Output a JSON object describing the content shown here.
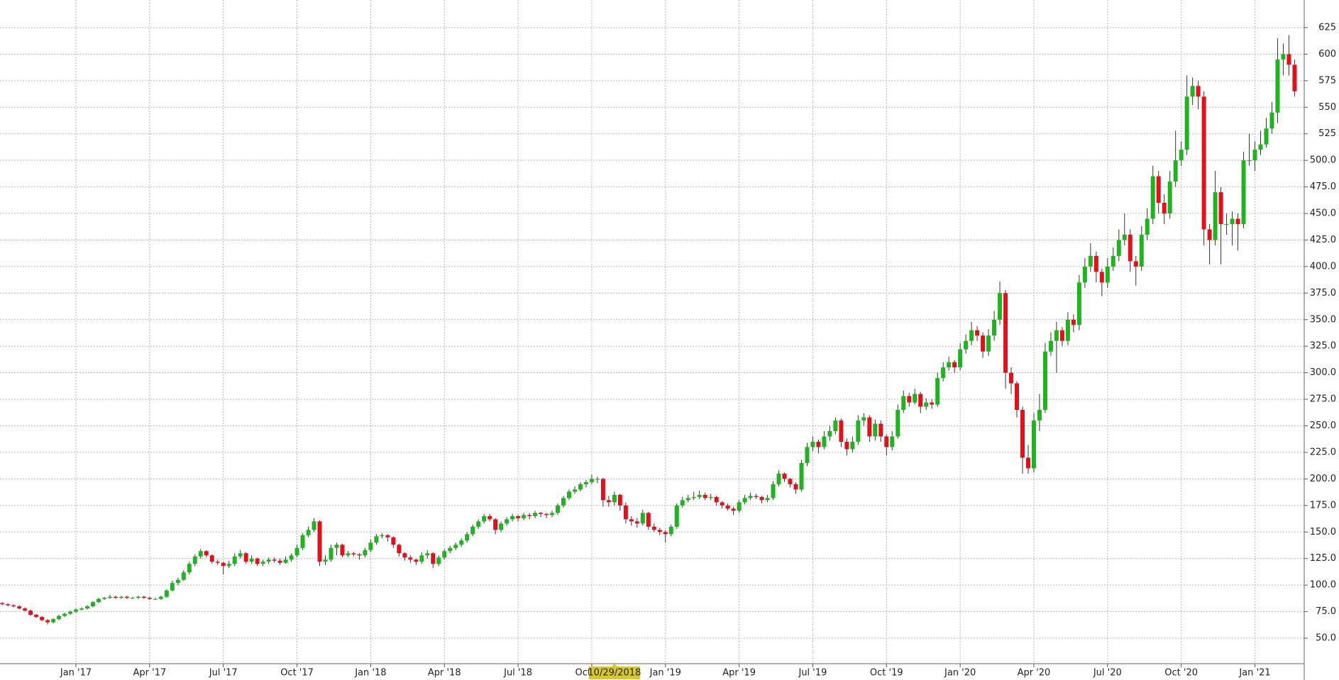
{
  "chart_data": {
    "type": "candlestick",
    "up_color": "#1fb31f",
    "down_color": "#e3101b",
    "wick_color": "#333333",
    "grid": true,
    "cursor": {
      "value": 108,
      "label": "10/29/2018"
    },
    "xlim": [
      -0.4,
      229.7
    ],
    "xticks": [
      {
        "value": 13,
        "label": "Jan '17"
      },
      {
        "value": 26,
        "label": "Apr '17"
      },
      {
        "value": 39,
        "label": "Jul '17"
      },
      {
        "value": 52,
        "label": "Oct '17"
      },
      {
        "value": 65,
        "label": "Jan '18"
      },
      {
        "value": 78,
        "label": "Apr '18"
      },
      {
        "value": 91,
        "label": "Jul '18"
      },
      {
        "value": 104,
        "label": "Oct '18"
      },
      {
        "value": 117,
        "label": "Jan '19"
      },
      {
        "value": 130,
        "label": "Apr '19"
      },
      {
        "value": 143,
        "label": "Jul '19"
      },
      {
        "value": 156,
        "label": "Oct '19"
      },
      {
        "value": 169,
        "label": "Jan '20"
      },
      {
        "value": 182,
        "label": "Apr '20"
      },
      {
        "value": 195,
        "label": "Jul '20"
      },
      {
        "value": 208,
        "label": "Oct '20"
      },
      {
        "value": 221,
        "label": "Jan '21"
      }
    ],
    "ylim": [
      26,
      651
    ],
    "yticks": [
      {
        "value": 50,
        "label": "50.0"
      },
      {
        "value": 75,
        "label": "75.0"
      },
      {
        "value": 100,
        "label": "100.0"
      },
      {
        "value": 125,
        "label": "125.0"
      },
      {
        "value": 150,
        "label": "150.0"
      },
      {
        "value": 175,
        "label": "175.0"
      },
      {
        "value": 200,
        "label": "200.0"
      },
      {
        "value": 225,
        "label": "225.0"
      },
      {
        "value": 250,
        "label": "250.0"
      },
      {
        "value": 275,
        "label": "275.0"
      },
      {
        "value": 300,
        "label": "300.0"
      },
      {
        "value": 325,
        "label": "325.0"
      },
      {
        "value": 350,
        "label": "350.0"
      },
      {
        "value": 375,
        "label": "375.0"
      },
      {
        "value": 400,
        "label": "400.0"
      },
      {
        "value": 425,
        "label": "425.0"
      },
      {
        "value": 450,
        "label": "450.0"
      },
      {
        "value": 475,
        "label": "475.0"
      },
      {
        "value": 500,
        "label": "500.0"
      },
      525,
      550,
      575,
      600,
      625
    ],
    "candles": [
      [
        83,
        84,
        81,
        82
      ],
      [
        82,
        83,
        80,
        81
      ],
      [
        81,
        82,
        79,
        80
      ],
      [
        80,
        81,
        77,
        78
      ],
      [
        78,
        79,
        75,
        76
      ],
      [
        76,
        77,
        71,
        72
      ],
      [
        72,
        73,
        69,
        70
      ],
      [
        70,
        71,
        66,
        67
      ],
      [
        67,
        68,
        63,
        65
      ],
      [
        65,
        69,
        64,
        68
      ],
      [
        68,
        72,
        67,
        71
      ],
      [
        71,
        74,
        70,
        73
      ],
      [
        73,
        76,
        72,
        75
      ],
      [
        75,
        78,
        74,
        77
      ],
      [
        77,
        79,
        76,
        78
      ],
      [
        78,
        81,
        77,
        80
      ],
      [
        80,
        85,
        79,
        84
      ],
      [
        84,
        88,
        83,
        87
      ],
      [
        87,
        89,
        86,
        88
      ],
      [
        88,
        91,
        87,
        89
      ],
      [
        89,
        90,
        87,
        88
      ],
      [
        88,
        90,
        87,
        89
      ],
      [
        89,
        90,
        87,
        88
      ],
      [
        88,
        89,
        87,
        88
      ],
      [
        88,
        90,
        87,
        89
      ],
      [
        89,
        90,
        87,
        88
      ],
      [
        88,
        89,
        86,
        87
      ],
      [
        87,
        88,
        86,
        87
      ],
      [
        87,
        90,
        86,
        89
      ],
      [
        89,
        96,
        88,
        95
      ],
      [
        95,
        104,
        94,
        102
      ],
      [
        102,
        107,
        100,
        105
      ],
      [
        105,
        114,
        104,
        112
      ],
      [
        112,
        122,
        110,
        120
      ],
      [
        120,
        129,
        118,
        127
      ],
      [
        127,
        134,
        125,
        132
      ],
      [
        132,
        133,
        126,
        128
      ],
      [
        128,
        129,
        120,
        122
      ],
      [
        122,
        124,
        119,
        121
      ],
      [
        121,
        122,
        110,
        118
      ],
      [
        118,
        123,
        116,
        120
      ],
      [
        120,
        130,
        118,
        127
      ],
      [
        127,
        133,
        125,
        130
      ],
      [
        130,
        131,
        120,
        122
      ],
      [
        122,
        128,
        120,
        125
      ],
      [
        125,
        126,
        118,
        120
      ],
      [
        120,
        124,
        118,
        122
      ],
      [
        122,
        126,
        120,
        124
      ],
      [
        124,
        126,
        121,
        123
      ],
      [
        123,
        125,
        119,
        121
      ],
      [
        121,
        127,
        120,
        124
      ],
      [
        124,
        130,
        122,
        128
      ],
      [
        128,
        138,
        126,
        135
      ],
      [
        135,
        149,
        133,
        147
      ],
      [
        147,
        155,
        145,
        152
      ],
      [
        152,
        163,
        150,
        160
      ],
      [
        160,
        161,
        118,
        122
      ],
      [
        122,
        128,
        119,
        124
      ],
      [
        124,
        138,
        122,
        135
      ],
      [
        135,
        140,
        128,
        138
      ],
      [
        138,
        139,
        126,
        128
      ],
      [
        128,
        132,
        126,
        130
      ],
      [
        130,
        131,
        127,
        129
      ],
      [
        129,
        130,
        124,
        128
      ],
      [
        128,
        135,
        126,
        133
      ],
      [
        133,
        143,
        131,
        140
      ],
      [
        140,
        148,
        138,
        146
      ],
      [
        146,
        149,
        144,
        147
      ],
      [
        147,
        148,
        141,
        145
      ],
      [
        145,
        146,
        135,
        138
      ],
      [
        138,
        139,
        127,
        130
      ],
      [
        130,
        131,
        123,
        126
      ],
      [
        126,
        128,
        121,
        124
      ],
      [
        124,
        125,
        119,
        122
      ],
      [
        122,
        131,
        120,
        128
      ],
      [
        128,
        133,
        125,
        130
      ],
      [
        130,
        131,
        116,
        120
      ],
      [
        120,
        128,
        118,
        126
      ],
      [
        126,
        134,
        124,
        132
      ],
      [
        132,
        137,
        130,
        135
      ],
      [
        135,
        140,
        133,
        138
      ],
      [
        138,
        144,
        136,
        142
      ],
      [
        142,
        150,
        140,
        148
      ],
      [
        148,
        157,
        146,
        155
      ],
      [
        155,
        162,
        153,
        160
      ],
      [
        160,
        167,
        158,
        165
      ],
      [
        165,
        167,
        160,
        162
      ],
      [
        162,
        163,
        148,
        152
      ],
      [
        152,
        160,
        150,
        158
      ],
      [
        158,
        164,
        156,
        162
      ],
      [
        162,
        167,
        160,
        165
      ],
      [
        165,
        166,
        160,
        163
      ],
      [
        163,
        168,
        161,
        166
      ],
      [
        166,
        168,
        162,
        165
      ],
      [
        165,
        170,
        163,
        168
      ],
      [
        168,
        169,
        164,
        167
      ],
      [
        167,
        168,
        163,
        166
      ],
      [
        166,
        170,
        164,
        168
      ],
      [
        168,
        177,
        166,
        175
      ],
      [
        175,
        184,
        173,
        182
      ],
      [
        182,
        190,
        180,
        188
      ],
      [
        188,
        193,
        186,
        190
      ],
      [
        190,
        197,
        188,
        195
      ],
      [
        195,
        199,
        192,
        197
      ],
      [
        197,
        204,
        195,
        200
      ],
      [
        200,
        202,
        196,
        200
      ],
      [
        200,
        201,
        174,
        180
      ],
      [
        180,
        184,
        174,
        178
      ],
      [
        178,
        188,
        175,
        185
      ],
      [
        185,
        186,
        170,
        175
      ],
      [
        175,
        178,
        158,
        162
      ],
      [
        162,
        165,
        156,
        160
      ],
      [
        160,
        163,
        154,
        158
      ],
      [
        158,
        171,
        156,
        168
      ],
      [
        168,
        169,
        152,
        155
      ],
      [
        155,
        158,
        150,
        152
      ],
      [
        152,
        154,
        147,
        150
      ],
      [
        150,
        152,
        140,
        148
      ],
      [
        148,
        157,
        146,
        155
      ],
      [
        155,
        177,
        153,
        175
      ],
      [
        175,
        183,
        173,
        180
      ],
      [
        180,
        185,
        178,
        182
      ],
      [
        182,
        188,
        180,
        183
      ],
      [
        183,
        189,
        181,
        185
      ],
      [
        185,
        187,
        180,
        182
      ],
      [
        182,
        186,
        180,
        183
      ],
      [
        183,
        184,
        175,
        178
      ],
      [
        178,
        179,
        172,
        175
      ],
      [
        175,
        177,
        170,
        172
      ],
      [
        172,
        174,
        166,
        170
      ],
      [
        170,
        180,
        168,
        178
      ],
      [
        178,
        185,
        176,
        182
      ],
      [
        182,
        187,
        180,
        184
      ],
      [
        184,
        186,
        181,
        183
      ],
      [
        183,
        184,
        177,
        180
      ],
      [
        180,
        185,
        178,
        182
      ],
      [
        182,
        198,
        180,
        195
      ],
      [
        195,
        208,
        193,
        205
      ],
      [
        205,
        206,
        197,
        200
      ],
      [
        200,
        201,
        192,
        195
      ],
      [
        195,
        197,
        186,
        190
      ],
      [
        190,
        218,
        188,
        215
      ],
      [
        215,
        234,
        212,
        230
      ],
      [
        230,
        240,
        226,
        235
      ],
      [
        235,
        237,
        224,
        230
      ],
      [
        230,
        245,
        228,
        240
      ],
      [
        240,
        250,
        236,
        245
      ],
      [
        245,
        258,
        242,
        255
      ],
      [
        255,
        257,
        230,
        235
      ],
      [
        235,
        238,
        222,
        228
      ],
      [
        228,
        240,
        225,
        235
      ],
      [
        235,
        260,
        232,
        255
      ],
      [
        255,
        262,
        250,
        258
      ],
      [
        258,
        260,
        235,
        240
      ],
      [
        240,
        256,
        236,
        252
      ],
      [
        252,
        255,
        235,
        240
      ],
      [
        240,
        242,
        222,
        230
      ],
      [
        230,
        245,
        227,
        240
      ],
      [
        240,
        270,
        238,
        265
      ],
      [
        265,
        283,
        262,
        278
      ],
      [
        278,
        281,
        268,
        272
      ],
      [
        272,
        285,
        270,
        280
      ],
      [
        280,
        282,
        262,
        268
      ],
      [
        268,
        276,
        265,
        272
      ],
      [
        272,
        275,
        266,
        270
      ],
      [
        270,
        300,
        268,
        295
      ],
      [
        295,
        310,
        292,
        305
      ],
      [
        305,
        315,
        302,
        310
      ],
      [
        310,
        312,
        300,
        305
      ],
      [
        305,
        328,
        302,
        322
      ],
      [
        322,
        336,
        318,
        330
      ],
      [
        330,
        348,
        326,
        340
      ],
      [
        340,
        344,
        330,
        335
      ],
      [
        335,
        338,
        314,
        320
      ],
      [
        320,
        341,
        316,
        335
      ],
      [
        335,
        358,
        330,
        350
      ],
      [
        350,
        386,
        345,
        375
      ],
      [
        375,
        378,
        285,
        300
      ],
      [
        300,
        305,
        280,
        290
      ],
      [
        290,
        292,
        258,
        265
      ],
      [
        265,
        268,
        205,
        220
      ],
      [
        220,
        232,
        205,
        210
      ],
      [
        210,
        262,
        206,
        255
      ],
      [
        255,
        280,
        245,
        265
      ],
      [
        265,
        328,
        262,
        320
      ],
      [
        320,
        338,
        316,
        330
      ],
      [
        330,
        348,
        300,
        340
      ],
      [
        340,
        343,
        325,
        330
      ],
      [
        330,
        357,
        326,
        350
      ],
      [
        350,
        355,
        338,
        345
      ],
      [
        345,
        392,
        340,
        385
      ],
      [
        385,
        408,
        380,
        400
      ],
      [
        400,
        422,
        395,
        410
      ],
      [
        410,
        414,
        385,
        395
      ],
      [
        395,
        398,
        372,
        385
      ],
      [
        385,
        408,
        380,
        400
      ],
      [
        400,
        418,
        396,
        410
      ],
      [
        410,
        435,
        405,
        425
      ],
      [
        425,
        450,
        420,
        430
      ],
      [
        430,
        435,
        395,
        405
      ],
      [
        405,
        410,
        382,
        400
      ],
      [
        400,
        438,
        396,
        430
      ],
      [
        430,
        455,
        425,
        445
      ],
      [
        445,
        495,
        440,
        485
      ],
      [
        485,
        490,
        450,
        460
      ],
      [
        460,
        468,
        440,
        450
      ],
      [
        450,
        490,
        445,
        480
      ],
      [
        480,
        528,
        475,
        500
      ],
      [
        500,
        518,
        495,
        510
      ],
      [
        510,
        580,
        505,
        560
      ],
      [
        560,
        578,
        552,
        570
      ],
      [
        570,
        575,
        548,
        560
      ],
      [
        560,
        565,
        420,
        435
      ],
      [
        435,
        440,
        402,
        425
      ],
      [
        425,
        490,
        420,
        470
      ],
      [
        470,
        475,
        402,
        440
      ],
      [
        440,
        450,
        430,
        440
      ],
      [
        440,
        452,
        420,
        445
      ],
      [
        445,
        450,
        415,
        440
      ],
      [
        440,
        508,
        436,
        500
      ],
      [
        500,
        525,
        495,
        500
      ],
      [
        500,
        518,
        490,
        510
      ],
      [
        510,
        528,
        505,
        515
      ],
      [
        515,
        540,
        512,
        530
      ],
      [
        530,
        555,
        525,
        545
      ],
      [
        545,
        615,
        535,
        595
      ],
      [
        595,
        610,
        580,
        600
      ],
      [
        600,
        618,
        580,
        590
      ],
      [
        590,
        595,
        560,
        565
      ]
    ]
  }
}
